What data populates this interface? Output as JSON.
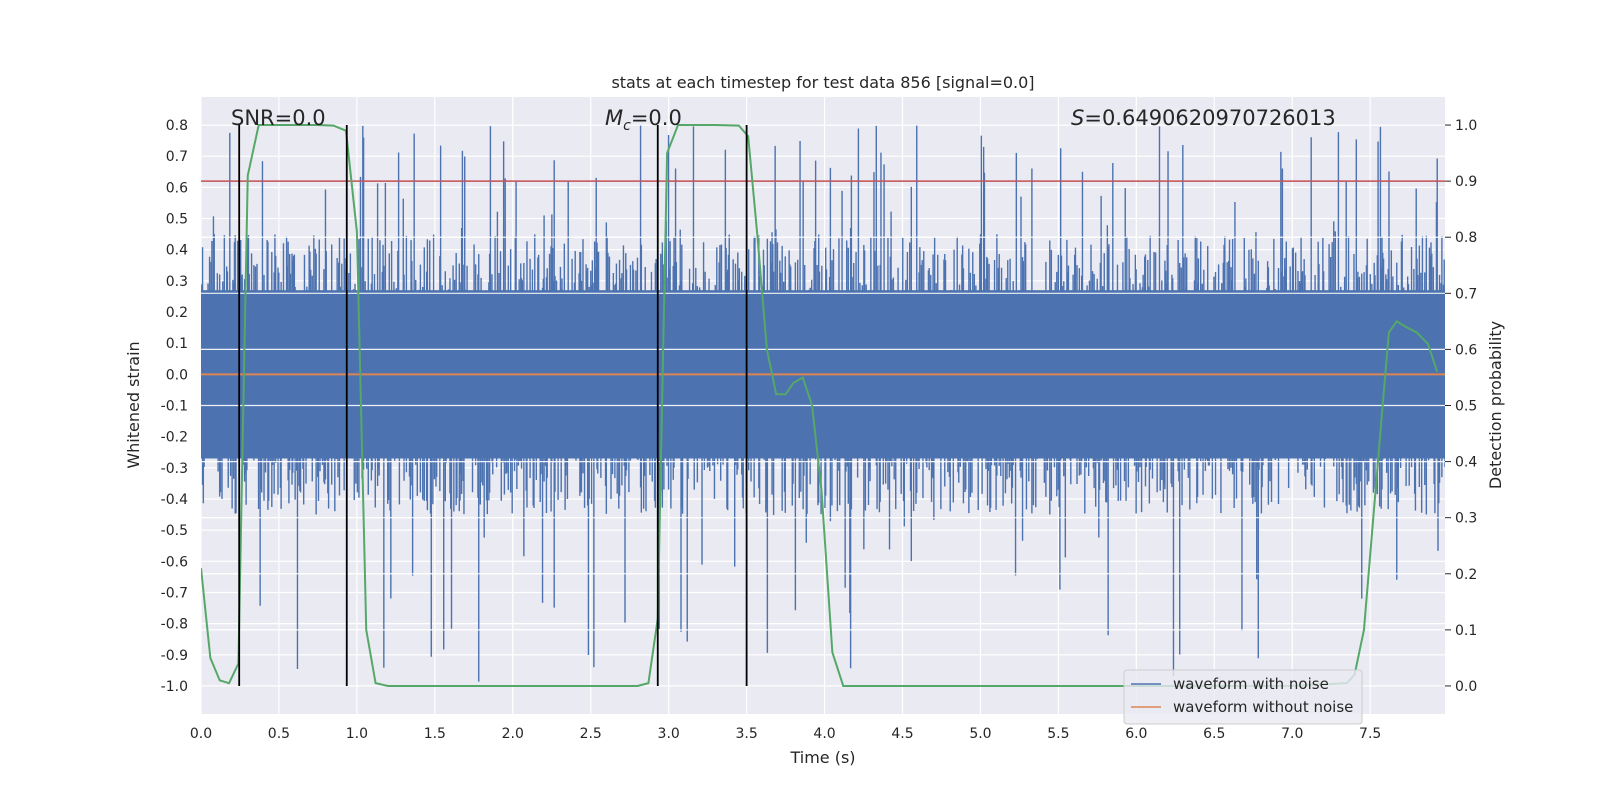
{
  "chart_data": {
    "type": "line",
    "title": "stats at each timestep for test data 856 [signal=0.0]",
    "xlabel": "Time (s)",
    "ylabel": "Whitened strain",
    "y2label": "Detection probability",
    "xlim": [
      0.0,
      7.98
    ],
    "ylim": [
      -1.09,
      0.89
    ],
    "y2lim": [
      -0.05,
      1.05
    ],
    "x_ticks": [
      "0.0",
      "0.5",
      "1.0",
      "1.5",
      "2.0",
      "2.5",
      "3.0",
      "3.5",
      "4.0",
      "4.5",
      "5.0",
      "5.5",
      "6.0",
      "6.5",
      "7.0",
      "7.5"
    ],
    "y_ticks": [
      "0.8",
      "0.7",
      "0.6",
      "0.5",
      "0.4",
      "0.3",
      "0.2",
      "0.1",
      "0.0",
      "-0.1",
      "-0.2",
      "-0.3",
      "-0.4",
      "-0.5",
      "-0.6",
      "-0.7",
      "-0.8",
      "-0.9",
      "-1.0"
    ],
    "y2_ticks": [
      "1.0",
      "0.9",
      "0.8",
      "0.7",
      "0.6",
      "0.5",
      "0.4",
      "0.3",
      "0.2",
      "0.1",
      "0.0"
    ],
    "grid": true,
    "legend_position": "lower-right",
    "annotations": {
      "snr": "SNR=0.0",
      "mc_symbol": "M",
      "mc_subscript": "c",
      "mc_value": "=0.0",
      "s_symbol": "S",
      "s_value": "=0.6490620970726013"
    },
    "series": [
      {
        "name": "waveform with noise",
        "color": "#4c72b0",
        "axis": "left",
        "description_of_extent": "dense noise mostly between -0.45 and 0.45, spikes up to about 0.8 and down to about -1.0",
        "band_core": [
          -0.27,
          0.27
        ],
        "band_envelope": [
          -0.45,
          0.45
        ],
        "spike_range": [
          -1.0,
          0.8
        ]
      },
      {
        "name": "waveform without noise",
        "color": "#dd8452",
        "axis": "left",
        "x": [
          0.0,
          7.98
        ],
        "y": [
          0.0,
          0.0
        ]
      }
    ],
    "threshold_line": {
      "color": "#c44e52",
      "y2": 0.9
    },
    "detection_probability": {
      "color": "#55a868",
      "axis": "right",
      "x": [
        0.0,
        0.06,
        0.12,
        0.18,
        0.24,
        0.3,
        0.37,
        0.45,
        0.55,
        0.65,
        0.75,
        0.85,
        0.93,
        1.0,
        1.06,
        1.12,
        1.2,
        1.3,
        1.6,
        2.0,
        2.4,
        2.8,
        2.87,
        2.93,
        2.99,
        3.06,
        3.15,
        3.3,
        3.45,
        3.51,
        3.57,
        3.63,
        3.69,
        3.75,
        3.8,
        3.86,
        3.92,
        3.98,
        4.05,
        4.12,
        4.3,
        5.0,
        6.0,
        7.0,
        7.35,
        7.4,
        7.46,
        7.52,
        7.58,
        7.62,
        7.67,
        7.73,
        7.8,
        7.87,
        7.93
      ],
      "y": [
        0.21,
        0.05,
        0.01,
        0.005,
        0.04,
        0.91,
        1.0,
        1.0,
        1.0,
        1.0,
        1.0,
        0.999,
        0.99,
        0.81,
        0.1,
        0.005,
        0.0,
        0.0,
        0.0,
        0.0,
        0.0,
        0.0,
        0.005,
        0.12,
        0.95,
        1.0,
        1.0,
        1.0,
        0.999,
        0.98,
        0.8,
        0.6,
        0.52,
        0.52,
        0.54,
        0.55,
        0.5,
        0.35,
        0.06,
        0.0,
        0.0,
        0.0,
        0.0,
        0.0,
        0.005,
        0.02,
        0.1,
        0.3,
        0.5,
        0.63,
        0.65,
        0.64,
        0.63,
        0.61,
        0.56
      ]
    },
    "vertical_lines": [
      {
        "x": 0.245,
        "color": "#000000"
      },
      {
        "x": 0.935,
        "color": "#000000"
      },
      {
        "x": 2.93,
        "color": "#000000"
      },
      {
        "x": 3.5,
        "color": "#000000"
      }
    ]
  }
}
